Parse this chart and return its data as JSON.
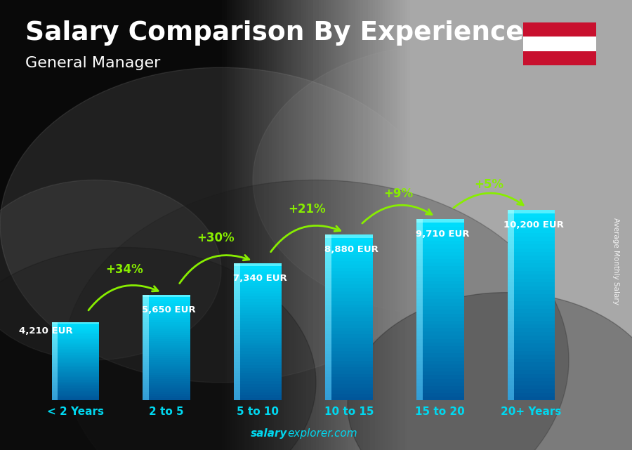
{
  "title": "Salary Comparison By Experience",
  "subtitle": "General Manager",
  "categories": [
    "< 2 Years",
    "2 to 5",
    "5 to 10",
    "10 to 15",
    "15 to 20",
    "20+ Years"
  ],
  "values": [
    4210,
    5650,
    7340,
    8880,
    9710,
    10200
  ],
  "value_labels": [
    "4,210 EUR",
    "5,650 EUR",
    "7,340 EUR",
    "8,880 EUR",
    "9,710 EUR",
    "10,200 EUR"
  ],
  "pct_labels": [
    "+34%",
    "+30%",
    "+21%",
    "+9%",
    "+5%"
  ],
  "bar_color_top": "#00e0ff",
  "bar_color_bottom": "#0066aa",
  "text_color_white": "#ffffff",
  "text_color_cyan": "#00d8f0",
  "text_color_green": "#88ee00",
  "title_fontsize": 27,
  "subtitle_fontsize": 16,
  "ylabel_text": "Average Monthly Salary",
  "footer_salary": "salary",
  "footer_rest": "explorer.com",
  "flag_red": "#c8102e",
  "flag_white": "#ffffff",
  "ymax": 13500,
  "bg_color": "#888888"
}
